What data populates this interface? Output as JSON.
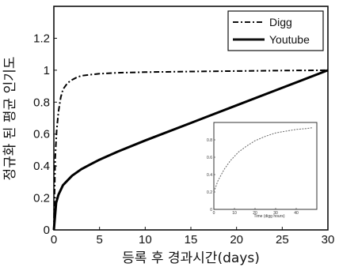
{
  "chart_data": [
    {
      "type": "line",
      "xlabel": "등록 후 경과시간(days)",
      "ylabel": "정규화 된 평균 인기도",
      "xlim": [
        0,
        30
      ],
      "ylim": [
        0,
        1.4
      ],
      "xticks": [
        "0",
        "5",
        "10",
        "15",
        "20",
        "25",
        "30"
      ],
      "yticks": [
        "0",
        "0.2",
        "0.4",
        "0.6",
        "0.8",
        "1",
        "1.2"
      ],
      "legend_position": "top-right",
      "series": [
        {
          "name": "Digg",
          "style": "dash-dot",
          "color": "#000000",
          "x": [
            0,
            0.15,
            0.3,
            0.5,
            0.75,
            1.0,
            1.5,
            2,
            2.5,
            3,
            4,
            5,
            7,
            10,
            15,
            20,
            25,
            30
          ],
          "y": [
            0,
            0.45,
            0.62,
            0.74,
            0.83,
            0.88,
            0.92,
            0.94,
            0.955,
            0.965,
            0.972,
            0.978,
            0.984,
            0.988,
            0.992,
            0.995,
            0.998,
            1.0
          ]
        },
        {
          "name": "Youtube",
          "style": "solid",
          "color": "#000000",
          "x": [
            0,
            0.25,
            0.5,
            1,
            1.5,
            2,
            3,
            4,
            5,
            7,
            10,
            15,
            20,
            25,
            30
          ],
          "y": [
            0,
            0.17,
            0.22,
            0.28,
            0.31,
            0.34,
            0.38,
            0.41,
            0.44,
            0.49,
            0.56,
            0.67,
            0.78,
            0.89,
            1.0
          ]
        }
      ]
    },
    {
      "type": "line",
      "role": "inset",
      "xlabel": "Time (digg hours)",
      "xlim": [
        0,
        50
      ],
      "ylim": [
        0,
        1
      ],
      "xticks": [
        "0",
        "10",
        "20",
        "30",
        "40"
      ],
      "yticks": [
        "0",
        "0.2",
        "0.4",
        "0.6",
        "0.8"
      ],
      "series": [
        {
          "style": "dashed",
          "color": "#666666",
          "x": [
            0,
            2,
            5,
            8,
            12,
            16,
            20,
            25,
            30,
            35,
            40,
            45,
            48
          ],
          "y": [
            0.2,
            0.33,
            0.46,
            0.56,
            0.66,
            0.73,
            0.79,
            0.84,
            0.88,
            0.9,
            0.92,
            0.93,
            0.94
          ]
        }
      ]
    }
  ]
}
